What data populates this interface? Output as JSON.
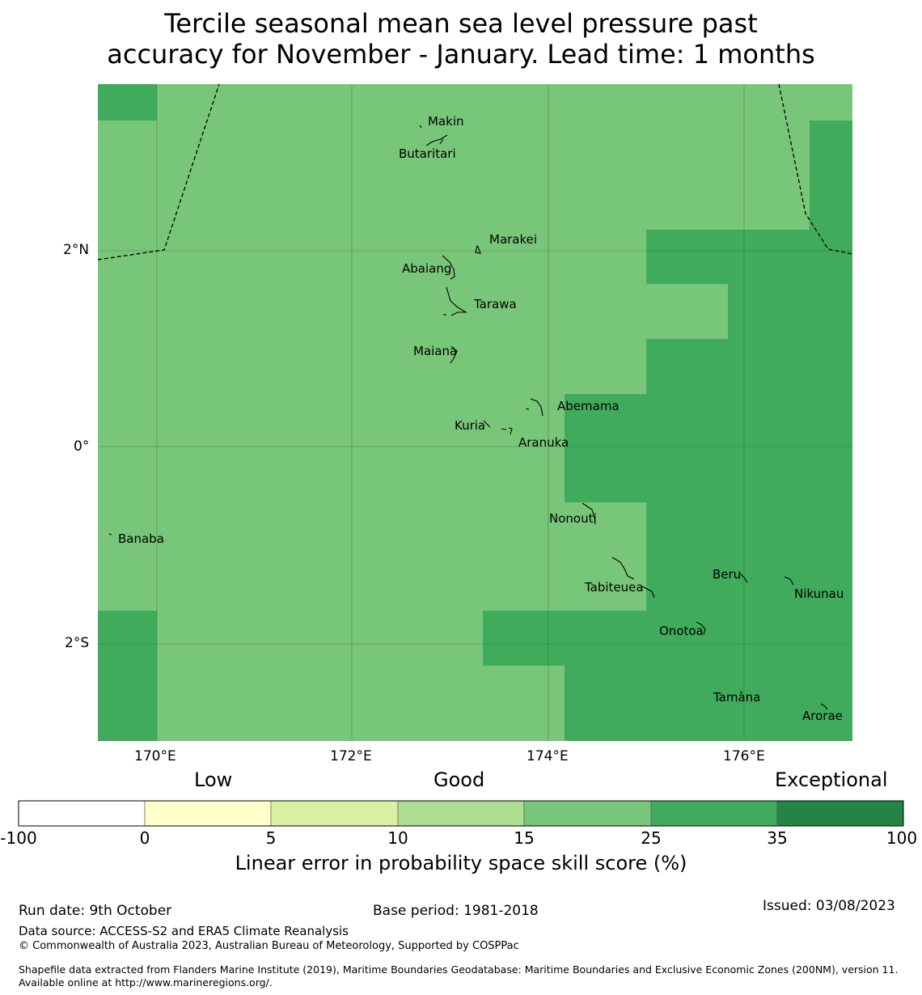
{
  "title": {
    "line1": "Tercile seasonal mean sea level pressure past",
    "line2": "accuracy for November - January. Lead time: 1 months"
  },
  "map": {
    "x_ticks": [
      "170°E",
      "172°E",
      "174°E",
      "176°E"
    ],
    "y_ticks": [
      "2°N",
      "0°",
      "2°S"
    ],
    "colors": {
      "good": "#78c679",
      "exceptional": "#41ab5d",
      "coast": "#000000",
      "grid": "#2c5f2e"
    },
    "places": [
      {
        "name": "Makin"
      },
      {
        "name": "Butaritari"
      },
      {
        "name": "Marakei"
      },
      {
        "name": "Abaiang"
      },
      {
        "name": "Tarawa"
      },
      {
        "name": "Maiana"
      },
      {
        "name": "Abemama"
      },
      {
        "name": "Kuria"
      },
      {
        "name": "Aranuka"
      },
      {
        "name": "Nonouti"
      },
      {
        "name": "Banaba"
      },
      {
        "name": "Tabiteuea"
      },
      {
        "name": "Beru"
      },
      {
        "name": "Nikunau"
      },
      {
        "name": "Onotoa"
      },
      {
        "name": "Tamana"
      },
      {
        "name": "Arorae"
      }
    ]
  },
  "colorbar": {
    "categories": [
      "Low",
      "Good",
      "Exceptional"
    ],
    "ticks": [
      "-100",
      "0",
      "5",
      "10",
      "15",
      "25",
      "35",
      "100"
    ],
    "colors": [
      "#ffffff",
      "#ffffcc",
      "#d9f0a3",
      "#addd8e",
      "#78c679",
      "#41ab5d",
      "#238443"
    ],
    "label": "Linear error in probability space skill score (%)"
  },
  "footer": {
    "run_date": "Run date: 9th October",
    "base_period": "Base period: 1981-2018",
    "issued": "Issued: 03/08/2023",
    "data_source": "Data source: ACCESS-S2 and ERA5 Climate Reanalysis",
    "copyright": "© Commonwealth of Australia 2023, Australian Bureau of Meteorology, Supported by COSPPac",
    "shapefile_note": "Shapefile data extracted from Flanders Marine Institute (2019), Maritime Boundaries Geodatabase: Maritime Boundaries and Exclusive Economic Zones (200NM), version 11. Available online at http://www.marineregions.org/."
  }
}
